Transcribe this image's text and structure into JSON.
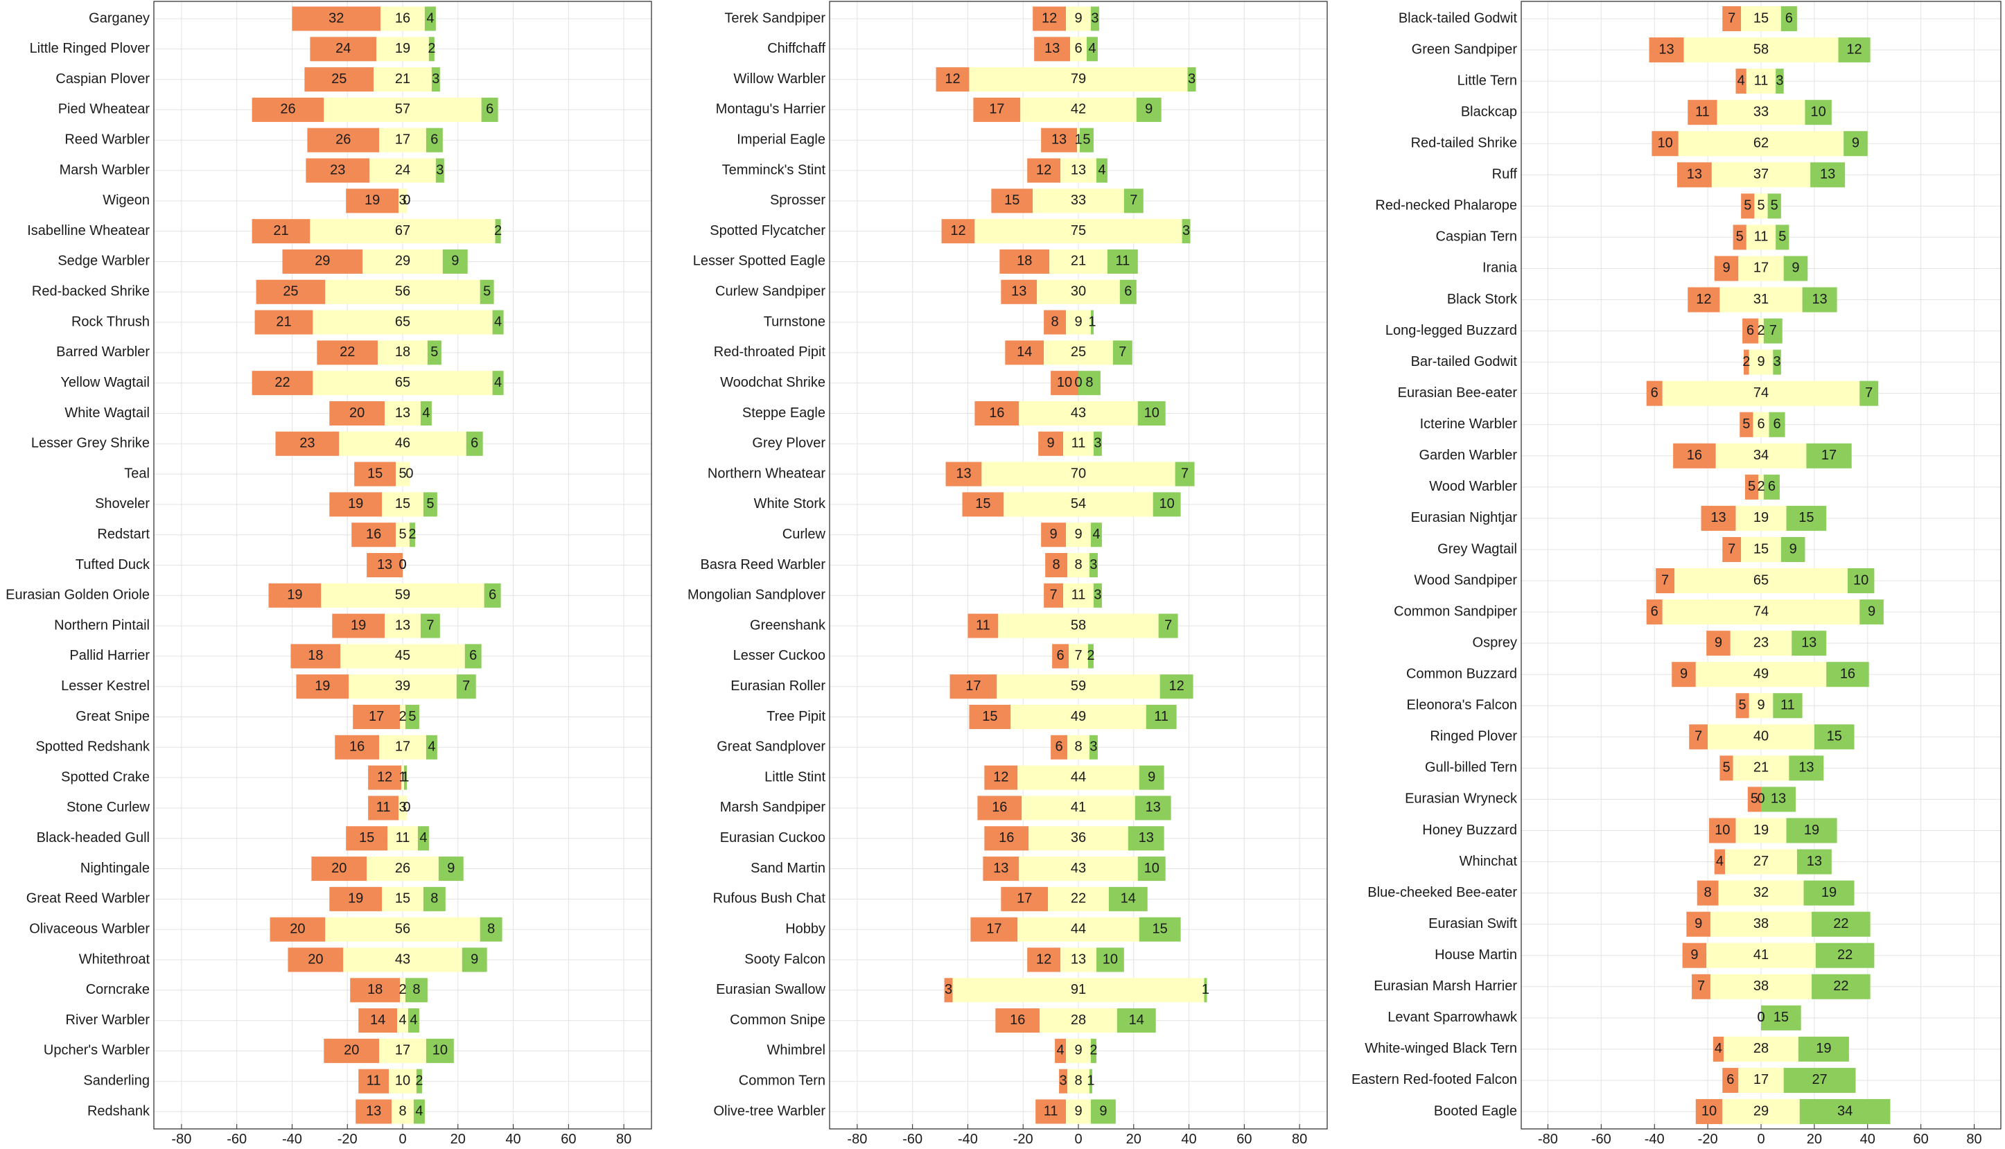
{
  "chart_data": [
    {
      "type": "bar",
      "stacked": "diverging",
      "grid": true,
      "xlim": [
        -90,
        90
      ],
      "xticks": [
        -80,
        -60,
        -40,
        -20,
        0,
        20,
        40,
        60,
        80
      ],
      "series": [
        {
          "name": "negative",
          "color": "#f28a55"
        },
        {
          "name": "neutral",
          "color": "#ffffc0"
        },
        {
          "name": "positive",
          "color": "#8dcd5c"
        }
      ],
      "rows": [
        {
          "label": "Garganey",
          "neg": 32,
          "neu": 16,
          "pos": 4
        },
        {
          "label": "Little Ringed Plover",
          "neg": 24,
          "neu": 19,
          "pos": 2
        },
        {
          "label": "Caspian Plover",
          "neg": 25,
          "neu": 21,
          "pos": 3
        },
        {
          "label": "Pied Wheatear",
          "neg": 26,
          "neu": 57,
          "pos": 6
        },
        {
          "label": "Reed Warbler",
          "neg": 26,
          "neu": 17,
          "pos": 6
        },
        {
          "label": "Marsh Warbler",
          "neg": 23,
          "neu": 24,
          "pos": 3
        },
        {
          "label": "Wigeon",
          "neg": 19,
          "neu": 3,
          "pos": 0
        },
        {
          "label": "Isabelline Wheatear",
          "neg": 21,
          "neu": 67,
          "pos": 2
        },
        {
          "label": "Sedge Warbler",
          "neg": 29,
          "neu": 29,
          "pos": 9
        },
        {
          "label": "Red-backed Shrike",
          "neg": 25,
          "neu": 56,
          "pos": 5
        },
        {
          "label": "Rock Thrush",
          "neg": 21,
          "neu": 65,
          "pos": 4
        },
        {
          "label": "Barred Warbler",
          "neg": 22,
          "neu": 18,
          "pos": 5
        },
        {
          "label": "Yellow Wagtail",
          "neg": 22,
          "neu": 65,
          "pos": 4
        },
        {
          "label": "White Wagtail",
          "neg": 20,
          "neu": 13,
          "pos": 4
        },
        {
          "label": "Lesser Grey Shrike",
          "neg": 23,
          "neu": 46,
          "pos": 6
        },
        {
          "label": "Teal",
          "neg": 15,
          "neu": 5,
          "pos": 0
        },
        {
          "label": "Shoveler",
          "neg": 19,
          "neu": 15,
          "pos": 5
        },
        {
          "label": "Redstart",
          "neg": 16,
          "neu": 5,
          "pos": 2
        },
        {
          "label": "Tufted Duck",
          "neg": 13,
          "neu": 0,
          "pos": 0
        },
        {
          "label": "Eurasian Golden Oriole",
          "neg": 19,
          "neu": 59,
          "pos": 6
        },
        {
          "label": "Northern Pintail",
          "neg": 19,
          "neu": 13,
          "pos": 7
        },
        {
          "label": "Pallid Harrier",
          "neg": 18,
          "neu": 45,
          "pos": 6
        },
        {
          "label": "Lesser Kestrel",
          "neg": 19,
          "neu": 39,
          "pos": 7
        },
        {
          "label": "Great Snipe",
          "neg": 17,
          "neu": 2,
          "pos": 5
        },
        {
          "label": "Spotted Redshank",
          "neg": 16,
          "neu": 17,
          "pos": 4
        },
        {
          "label": "Spotted Crake",
          "neg": 12,
          "neu": 1,
          "pos": 1
        },
        {
          "label": "Stone Curlew",
          "neg": 11,
          "neu": 3,
          "pos": 0
        },
        {
          "label": "Black-headed Gull",
          "neg": 15,
          "neu": 11,
          "pos": 4
        },
        {
          "label": "Nightingale",
          "neg": 20,
          "neu": 26,
          "pos": 9
        },
        {
          "label": "Great Reed Warbler",
          "neg": 19,
          "neu": 15,
          "pos": 8
        },
        {
          "label": "Olivaceous Warbler",
          "neg": 20,
          "neu": 56,
          "pos": 8
        },
        {
          "label": "Whitethroat",
          "neg": 20,
          "neu": 43,
          "pos": 9
        },
        {
          "label": "Corncrake",
          "neg": 18,
          "neu": 2,
          "pos": 8
        },
        {
          "label": "River Warbler",
          "neg": 14,
          "neu": 4,
          "pos": 4
        },
        {
          "label": "Upcher's Warbler",
          "neg": 20,
          "neu": 17,
          "pos": 10
        },
        {
          "label": "Sanderling",
          "neg": 11,
          "neu": 10,
          "pos": 2
        },
        {
          "label": "Redshank",
          "neg": 13,
          "neu": 8,
          "pos": 4
        }
      ]
    },
    {
      "type": "bar",
      "stacked": "diverging",
      "grid": true,
      "xlim": [
        -90,
        90
      ],
      "xticks": [
        -80,
        -60,
        -40,
        -20,
        0,
        20,
        40,
        60,
        80
      ],
      "series": [
        {
          "name": "negative",
          "color": "#f28a55"
        },
        {
          "name": "neutral",
          "color": "#ffffc0"
        },
        {
          "name": "positive",
          "color": "#8dcd5c"
        }
      ],
      "rows": [
        {
          "label": "Terek Sandpiper",
          "neg": 12,
          "neu": 9,
          "pos": 3
        },
        {
          "label": "Chiffchaff",
          "neg": 13,
          "neu": 6,
          "pos": 4
        },
        {
          "label": "Willow Warbler",
          "neg": 12,
          "neu": 79,
          "pos": 3
        },
        {
          "label": "Montagu's Harrier",
          "neg": 17,
          "neu": 42,
          "pos": 9
        },
        {
          "label": "Imperial Eagle",
          "neg": 13,
          "neu": 1,
          "pos": 5
        },
        {
          "label": "Temminck's Stint",
          "neg": 12,
          "neu": 13,
          "pos": 4
        },
        {
          "label": "Sprosser",
          "neg": 15,
          "neu": 33,
          "pos": 7
        },
        {
          "label": "Spotted Flycatcher",
          "neg": 12,
          "neu": 75,
          "pos": 3
        },
        {
          "label": "Lesser Spotted Eagle",
          "neg": 18,
          "neu": 21,
          "pos": 11
        },
        {
          "label": "Curlew Sandpiper",
          "neg": 13,
          "neu": 30,
          "pos": 6
        },
        {
          "label": "Turnstone",
          "neg": 8,
          "neu": 9,
          "pos": 1
        },
        {
          "label": "Red-throated Pipit",
          "neg": 14,
          "neu": 25,
          "pos": 7
        },
        {
          "label": "Woodchat Shrike",
          "neg": 10,
          "neu": 0,
          "pos": 8
        },
        {
          "label": "Steppe Eagle",
          "neg": 16,
          "neu": 43,
          "pos": 10
        },
        {
          "label": "Grey Plover",
          "neg": 9,
          "neu": 11,
          "pos": 3
        },
        {
          "label": "Northern Wheatear",
          "neg": 13,
          "neu": 70,
          "pos": 7
        },
        {
          "label": "White Stork",
          "neg": 15,
          "neu": 54,
          "pos": 10
        },
        {
          "label": "Curlew",
          "neg": 9,
          "neu": 9,
          "pos": 4
        },
        {
          "label": "Basra Reed Warbler",
          "neg": 8,
          "neu": 8,
          "pos": 3
        },
        {
          "label": "Mongolian Sandplover",
          "neg": 7,
          "neu": 11,
          "pos": 3
        },
        {
          "label": "Greenshank",
          "neg": 11,
          "neu": 58,
          "pos": 7
        },
        {
          "label": "Lesser Cuckoo",
          "neg": 6,
          "neu": 7,
          "pos": 2
        },
        {
          "label": "Eurasian Roller",
          "neg": 17,
          "neu": 59,
          "pos": 12
        },
        {
          "label": "Tree Pipit",
          "neg": 15,
          "neu": 49,
          "pos": 11
        },
        {
          "label": "Great Sandplover",
          "neg": 6,
          "neu": 8,
          "pos": 3
        },
        {
          "label": "Little Stint",
          "neg": 12,
          "neu": 44,
          "pos": 9
        },
        {
          "label": "Marsh Sandpiper",
          "neg": 16,
          "neu": 41,
          "pos": 13
        },
        {
          "label": "Eurasian Cuckoo",
          "neg": 16,
          "neu": 36,
          "pos": 13
        },
        {
          "label": "Sand Martin",
          "neg": 13,
          "neu": 43,
          "pos": 10
        },
        {
          "label": "Rufous Bush Chat",
          "neg": 17,
          "neu": 22,
          "pos": 14
        },
        {
          "label": "Hobby",
          "neg": 17,
          "neu": 44,
          "pos": 15
        },
        {
          "label": "Sooty Falcon",
          "neg": 12,
          "neu": 13,
          "pos": 10
        },
        {
          "label": "Eurasian Swallow",
          "neg": 3,
          "neu": 91,
          "pos": 1
        },
        {
          "label": "Common Snipe",
          "neg": 16,
          "neu": 28,
          "pos": 14
        },
        {
          "label": "Whimbrel",
          "neg": 4,
          "neu": 9,
          "pos": 2
        },
        {
          "label": "Common Tern",
          "neg": 3,
          "neu": 8,
          "pos": 1
        },
        {
          "label": "Olive-tree Warbler",
          "neg": 11,
          "neu": 9,
          "pos": 9
        }
      ]
    },
    {
      "type": "bar",
      "stacked": "diverging",
      "grid": true,
      "xlim": [
        -90,
        90
      ],
      "xticks": [
        -80,
        -60,
        -40,
        -20,
        0,
        20,
        40,
        60,
        80
      ],
      "series": [
        {
          "name": "negative",
          "color": "#f28a55"
        },
        {
          "name": "neutral",
          "color": "#ffffc0"
        },
        {
          "name": "positive",
          "color": "#8dcd5c"
        }
      ],
      "rows": [
        {
          "label": "Black-tailed Godwit",
          "neg": 7,
          "neu": 15,
          "pos": 6
        },
        {
          "label": "Green Sandpiper",
          "neg": 13,
          "neu": 58,
          "pos": 12
        },
        {
          "label": "Little Tern",
          "neg": 4,
          "neu": 11,
          "pos": 3
        },
        {
          "label": "Blackcap",
          "neg": 11,
          "neu": 33,
          "pos": 10
        },
        {
          "label": "Red-tailed Shrike",
          "neg": 10,
          "neu": 62,
          "pos": 9
        },
        {
          "label": "Ruff",
          "neg": 13,
          "neu": 37,
          "pos": 13
        },
        {
          "label": "Red-necked Phalarope",
          "neg": 5,
          "neu": 5,
          "pos": 5
        },
        {
          "label": "Caspian Tern",
          "neg": 5,
          "neu": 11,
          "pos": 5
        },
        {
          "label": "Irania",
          "neg": 9,
          "neu": 17,
          "pos": 9
        },
        {
          "label": "Black Stork",
          "neg": 12,
          "neu": 31,
          "pos": 13
        },
        {
          "label": "Long-legged Buzzard",
          "neg": 6,
          "neu": 2,
          "pos": 7
        },
        {
          "label": "Bar-tailed Godwit",
          "neg": 2,
          "neu": 9,
          "pos": 3
        },
        {
          "label": "Eurasian Bee-eater",
          "neg": 6,
          "neu": 74,
          "pos": 7
        },
        {
          "label": "Icterine Warbler",
          "neg": 5,
          "neu": 6,
          "pos": 6
        },
        {
          "label": "Garden Warbler",
          "neg": 16,
          "neu": 34,
          "pos": 17
        },
        {
          "label": "Wood Warbler",
          "neg": 5,
          "neu": 2,
          "pos": 6
        },
        {
          "label": "Eurasian Nightjar",
          "neg": 13,
          "neu": 19,
          "pos": 15
        },
        {
          "label": "Grey Wagtail",
          "neg": 7,
          "neu": 15,
          "pos": 9
        },
        {
          "label": "Wood Sandpiper",
          "neg": 7,
          "neu": 65,
          "pos": 10
        },
        {
          "label": "Common Sandpiper",
          "neg": 6,
          "neu": 74,
          "pos": 9
        },
        {
          "label": "Osprey",
          "neg": 9,
          "neu": 23,
          "pos": 13
        },
        {
          "label": "Common Buzzard",
          "neg": 9,
          "neu": 49,
          "pos": 16
        },
        {
          "label": "Eleonora's Falcon",
          "neg": 5,
          "neu": 9,
          "pos": 11
        },
        {
          "label": "Ringed Plover",
          "neg": 7,
          "neu": 40,
          "pos": 15
        },
        {
          "label": "Gull-billed Tern",
          "neg": 5,
          "neu": 21,
          "pos": 13
        },
        {
          "label": "Eurasian Wryneck",
          "neg": 5,
          "neu": 0,
          "pos": 13
        },
        {
          "label": "Honey Buzzard",
          "neg": 10,
          "neu": 19,
          "pos": 19
        },
        {
          "label": "Whinchat",
          "neg": 4,
          "neu": 27,
          "pos": 13
        },
        {
          "label": "Blue-cheeked Bee-eater",
          "neg": 8,
          "neu": 32,
          "pos": 19
        },
        {
          "label": "Eurasian Swift",
          "neg": 9,
          "neu": 38,
          "pos": 22
        },
        {
          "label": "House Martin",
          "neg": 9,
          "neu": 41,
          "pos": 22
        },
        {
          "label": "Eurasian Marsh Harrier",
          "neg": 7,
          "neu": 38,
          "pos": 22
        },
        {
          "label": "Levant Sparrowhawk",
          "neg": 0,
          "neu": 0,
          "pos": 15
        },
        {
          "label": "White-winged Black Tern",
          "neg": 4,
          "neu": 28,
          "pos": 19
        },
        {
          "label": "Eastern Red-footed Falcon",
          "neg": 6,
          "neu": 17,
          "pos": 27
        },
        {
          "label": "Booted Eagle",
          "neg": 10,
          "neu": 29,
          "pos": 34
        }
      ]
    }
  ]
}
